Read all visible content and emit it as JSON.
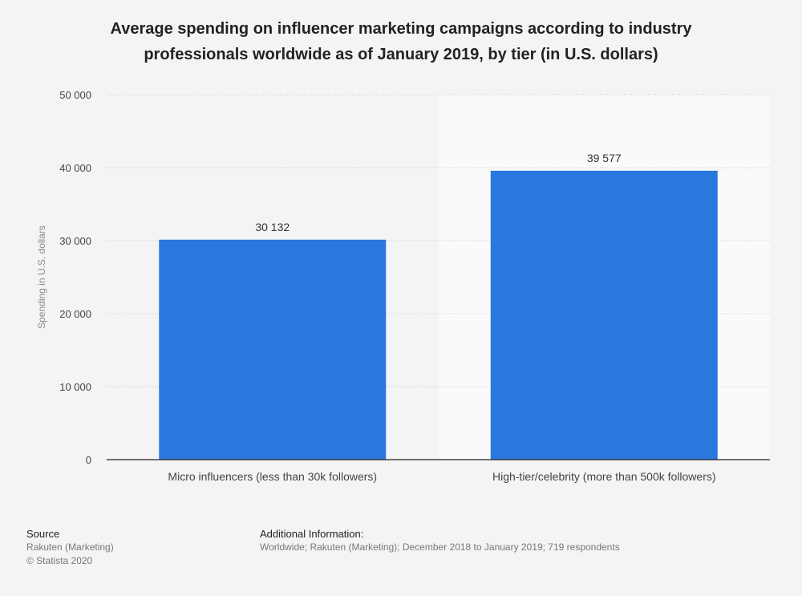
{
  "chart_data": {
    "type": "bar",
    "title_lines": [
      "Average spending on influencer marketing campaigns according to industry",
      "professionals worldwide as of January 2019, by tier (in U.S. dollars)"
    ],
    "categories": [
      "Micro influencers (less than 30k followers)",
      "High-tier/celebrity (more than 500k followers)"
    ],
    "values": [
      30132,
      39577
    ],
    "value_labels": [
      "30 132",
      "39 577"
    ],
    "ylabel": "Spending in U.S. dollars",
    "ylim": [
      0,
      50000
    ],
    "yticks": [
      0,
      10000,
      20000,
      30000,
      40000,
      50000
    ],
    "ytick_labels": [
      "0",
      "10 000",
      "20 000",
      "30 000",
      "40 000",
      "50 000"
    ],
    "grid": true,
    "colors": {
      "bar": "#2a78de",
      "highlight_band": "#fafafa"
    }
  },
  "footer": {
    "source_heading": "Source",
    "source_lines": [
      "Rakuten (Marketing)",
      "© Statista 2020"
    ],
    "info_heading": "Additional Information:",
    "info_text": "Worldwide; Rakuten (Marketing); December 2018 to January 2019; 719 respondents"
  }
}
